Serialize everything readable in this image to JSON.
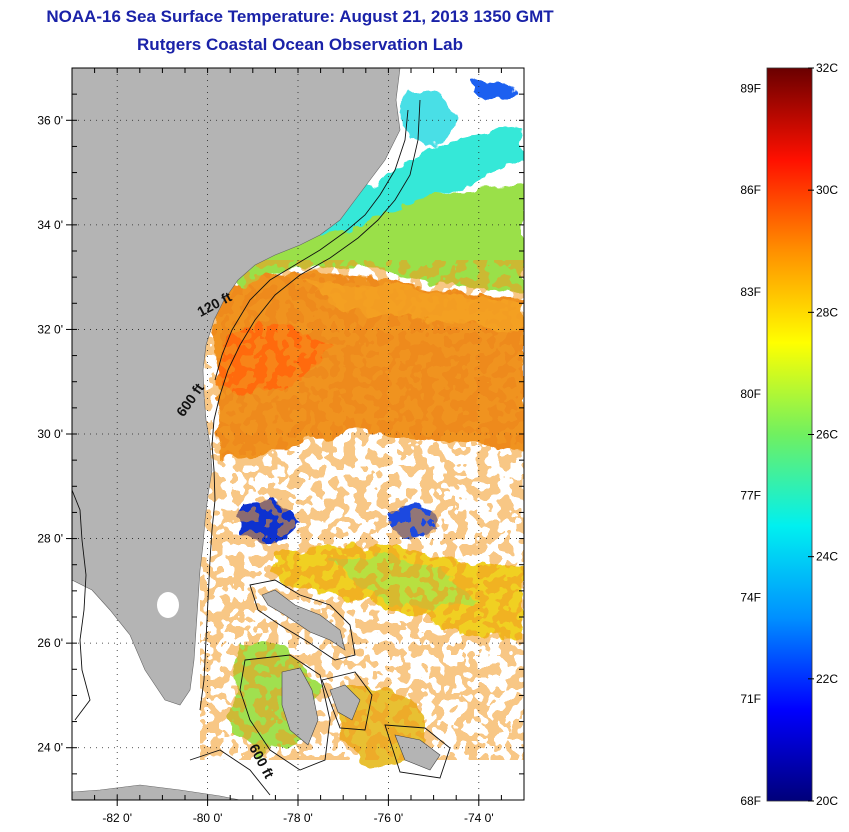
{
  "header": {
    "title": "NOAA-16 Sea Surface Temperature:  August 21, 2013 1350 GMT",
    "subtitle": "Rutgers Coastal Ocean Observation Lab"
  },
  "map": {
    "lon_range": [
      -83,
      -73
    ],
    "lat_range": [
      23,
      37
    ],
    "lon_ticks": [
      {
        "value": -82,
        "label": "-82 0'"
      },
      {
        "value": -80,
        "label": "-80 0'"
      },
      {
        "value": -78,
        "label": "-78 0'"
      },
      {
        "value": -76,
        "label": "-76 0'"
      },
      {
        "value": -74,
        "label": "-74 0'"
      }
    ],
    "lat_ticks": [
      {
        "value": 36,
        "label": "36 0'"
      },
      {
        "value": 34,
        "label": "34 0'"
      },
      {
        "value": 32,
        "label": "32 0'"
      },
      {
        "value": 30,
        "label": "30 0'"
      },
      {
        "value": 28,
        "label": "28 0'"
      },
      {
        "value": 26,
        "label": "26 0'"
      },
      {
        "value": 24,
        "label": "24 0'"
      }
    ],
    "contour_labels": [
      {
        "text": "120 ft",
        "lon": -79.8,
        "lat": 32.4,
        "angle": -28
      },
      {
        "text": "600 ft",
        "lon": -80.3,
        "lat": 30.6,
        "angle": -55
      },
      {
        "text": "600 ft",
        "lon": -78.9,
        "lat": 23.7,
        "angle": 62
      }
    ],
    "colors": {
      "land": "#b4b4b4",
      "no_data": "#ffffff",
      "grid": "#222222"
    }
  },
  "colorbar": {
    "c_range": [
      20,
      32
    ],
    "celsius_ticks": [
      {
        "value": 32,
        "label": "32C"
      },
      {
        "value": 30,
        "label": "30C"
      },
      {
        "value": 28,
        "label": "28C"
      },
      {
        "value": 26,
        "label": "26C"
      },
      {
        "value": 24,
        "label": "24C"
      },
      {
        "value": 22,
        "label": "22C"
      },
      {
        "value": 20,
        "label": "20C"
      }
    ],
    "fahrenheit_ticks": [
      {
        "value": 89,
        "label": "89F"
      },
      {
        "value": 86,
        "label": "86F"
      },
      {
        "value": 83,
        "label": "83F"
      },
      {
        "value": 80,
        "label": "80F"
      },
      {
        "value": 77,
        "label": "77F"
      },
      {
        "value": 74,
        "label": "74F"
      },
      {
        "value": 71,
        "label": "71F"
      },
      {
        "value": 68,
        "label": "68F"
      }
    ],
    "stops": [
      "#00007a",
      "#0000ff",
      "#0090ff",
      "#00f0f0",
      "#70f060",
      "#ffff00",
      "#ff9000",
      "#ff1000",
      "#6a0000"
    ]
  }
}
